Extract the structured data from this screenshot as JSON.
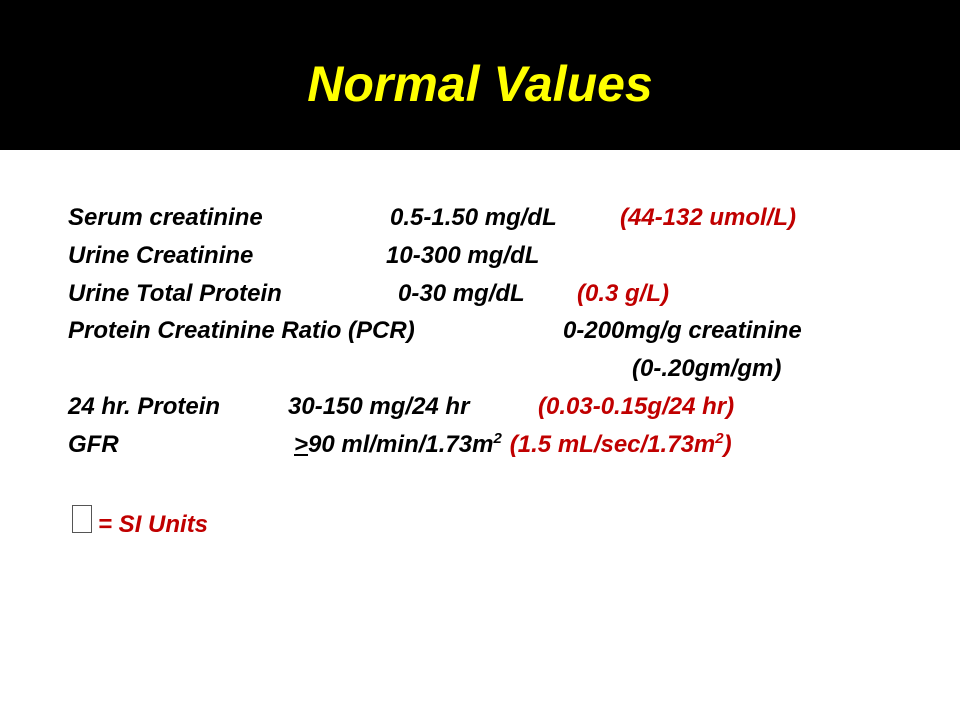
{
  "header": {
    "title": "Normal Values"
  },
  "rows": [
    {
      "label": "Serum creatinine",
      "value": "0.5-1.50 mg/dL",
      "si": "(44-132 umol/L)"
    },
    {
      "label": "Urine Creatinine",
      "value": "10-300 mg/dL"
    },
    {
      "label": "Urine Total Protein",
      "value": "0-30 mg/dL",
      "si": "(0.3 g/L)"
    },
    {
      "label": "Protein Creatinine Ratio (PCR)",
      "value": "0-200mg/g creatinine",
      "value_line2": "(0-.20gm/gm)"
    },
    {
      "label": "24 hr. Protein",
      "value": "30-150 mg/24 hr",
      "si": "(0.03-0.15g/24 hr)"
    },
    {
      "label": "GFR",
      "value_prefix": ">",
      "value": "90 ml/min/1.73m",
      "value_sup": "2",
      "si": "(1.5 mL/sec/1.73m",
      "si_sup": "2",
      "si_end": ")"
    }
  ],
  "legend": {
    "text": "= SI Units"
  }
}
